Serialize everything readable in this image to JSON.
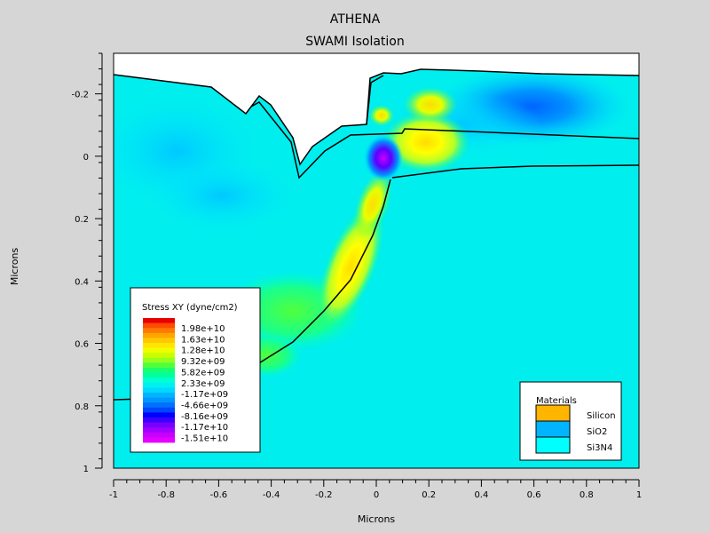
{
  "chart_data": {
    "type": "heatmap",
    "title": "ATHENA",
    "subtitle": "SWAMI Isolation",
    "xlabel": "Microns",
    "ylabel": "Microns",
    "xlim": [
      -1,
      1
    ],
    "ylim": [
      -0.33,
      1
    ],
    "y_inverted": true,
    "x_ticks": [
      "-1",
      "-0.8",
      "-0.6",
      "-0.4",
      "-0.2",
      "0",
      "0.2",
      "0.4",
      "0.6",
      "0.8",
      "1"
    ],
    "x_tick_values": [
      -1,
      -0.8,
      -0.6,
      -0.4,
      -0.2,
      0,
      0.2,
      0.4,
      0.6,
      0.8,
      1
    ],
    "y_ticks": [
      "-0.2",
      "0",
      "0.2",
      "0.4",
      "0.6",
      "0.8",
      "1"
    ],
    "y_tick_values": [
      -0.2,
      0,
      0.2,
      0.4,
      0.6,
      0.8,
      1
    ],
    "colorbar": {
      "title": "Stress XY (dyne/cm2)",
      "labels": [
        "1.98e+10",
        "1.63e+10",
        "1.28e+10",
        "9.32e+09",
        "5.82e+09",
        "2.33e+09",
        "-1.17e+09",
        "-4.66e+09",
        "-8.16e+09",
        "-1.17e+10",
        "-1.51e+10"
      ],
      "colors": [
        "#e60000",
        "#ff4a00",
        "#ff7a00",
        "#ffa500",
        "#ffc800",
        "#ffe600",
        "#f0ff00",
        "#c8ff00",
        "#96ff1e",
        "#50ff3c",
        "#19ff6e",
        "#00ffa0",
        "#00ffd2",
        "#00f0f0",
        "#00d8ff",
        "#00b4ff",
        "#0096ff",
        "#0070ff",
        "#0046ff",
        "#0000ff",
        "#3c00ff",
        "#7800ff",
        "#a000ff",
        "#c800ff",
        "#e600ff"
      ]
    },
    "materials_title": "Materials",
    "materials": [
      {
        "name": "Silicon",
        "color": "#ffb400"
      },
      {
        "name": "SiO2",
        "color": "#00b4ff"
      },
      {
        "name": "Si3N4",
        "color": "#00ffff"
      }
    ],
    "colors": {
      "background": "#d6d6d6",
      "domain_fill": "#00eeee",
      "outline": "#000000"
    }
  }
}
